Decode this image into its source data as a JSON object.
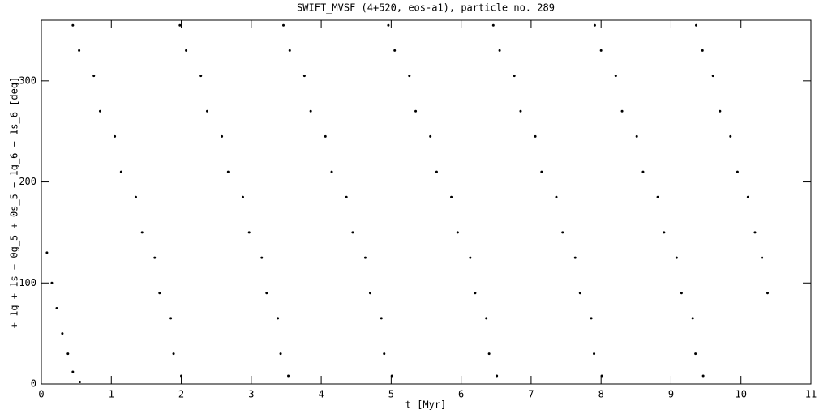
{
  "chart_data": {
    "type": "scatter",
    "title": "SWIFT_MVSF (4+520, eos-a1), particle no. 289",
    "xlabel": "t [Myr]",
    "ylabel": "+ 1g + 1s + 0g_5 + 0s_5 − 1g_6 − 1s_6 [deg]",
    "xlim": [
      0,
      11
    ],
    "ylim": [
      0,
      360
    ],
    "xticks": [
      0,
      1,
      2,
      3,
      4,
      5,
      6,
      7,
      8,
      9,
      10,
      11
    ],
    "yticks": [
      0,
      100,
      200,
      300
    ],
    "color": "#000000",
    "x": [
      0.08,
      0.15,
      0.22,
      0.3,
      0.38,
      0.45,
      0.55,
      0.45,
      0.54,
      0.75,
      0.84,
      1.05,
      1.14,
      1.35,
      1.44,
      1.62,
      1.69,
      1.85,
      1.89,
      2.0,
      1.98,
      2.07,
      2.28,
      2.37,
      2.58,
      2.67,
      2.88,
      2.97,
      3.15,
      3.22,
      3.38,
      3.42,
      3.53,
      3.46,
      3.55,
      3.76,
      3.85,
      4.06,
      4.15,
      4.36,
      4.45,
      4.63,
      4.7,
      4.86,
      4.9,
      5.01,
      4.96,
      5.05,
      5.26,
      5.35,
      5.56,
      5.65,
      5.86,
      5.95,
      6.13,
      6.2,
      6.36,
      6.4,
      6.51,
      6.46,
      6.55,
      6.76,
      6.85,
      7.06,
      7.15,
      7.36,
      7.45,
      7.63,
      7.7,
      7.86,
      7.9,
      8.01,
      7.91,
      8.0,
      8.21,
      8.3,
      8.51,
      8.6,
      8.81,
      8.9,
      9.08,
      9.15,
      9.31,
      9.35,
      9.46,
      9.36,
      9.45,
      9.6,
      9.7,
      9.85,
      9.95,
      10.1,
      10.2,
      10.3,
      10.38
    ],
    "y": [
      130,
      100,
      75,
      50,
      30,
      12,
      2,
      355,
      330,
      305,
      270,
      245,
      210,
      185,
      150,
      125,
      90,
      65,
      30,
      8,
      355,
      330,
      305,
      270,
      245,
      210,
      185,
      150,
      125,
      90,
      65,
      30,
      8,
      355,
      330,
      305,
      270,
      245,
      210,
      185,
      150,
      125,
      90,
      65,
      30,
      8,
      355,
      330,
      305,
      270,
      245,
      210,
      185,
      150,
      125,
      90,
      65,
      30,
      8,
      355,
      330,
      305,
      270,
      245,
      210,
      185,
      150,
      125,
      90,
      65,
      30,
      8,
      355,
      330,
      305,
      270,
      245,
      210,
      185,
      150,
      125,
      90,
      65,
      30,
      8,
      355,
      330,
      305,
      270,
      245,
      210,
      185,
      150,
      125,
      90
    ]
  }
}
